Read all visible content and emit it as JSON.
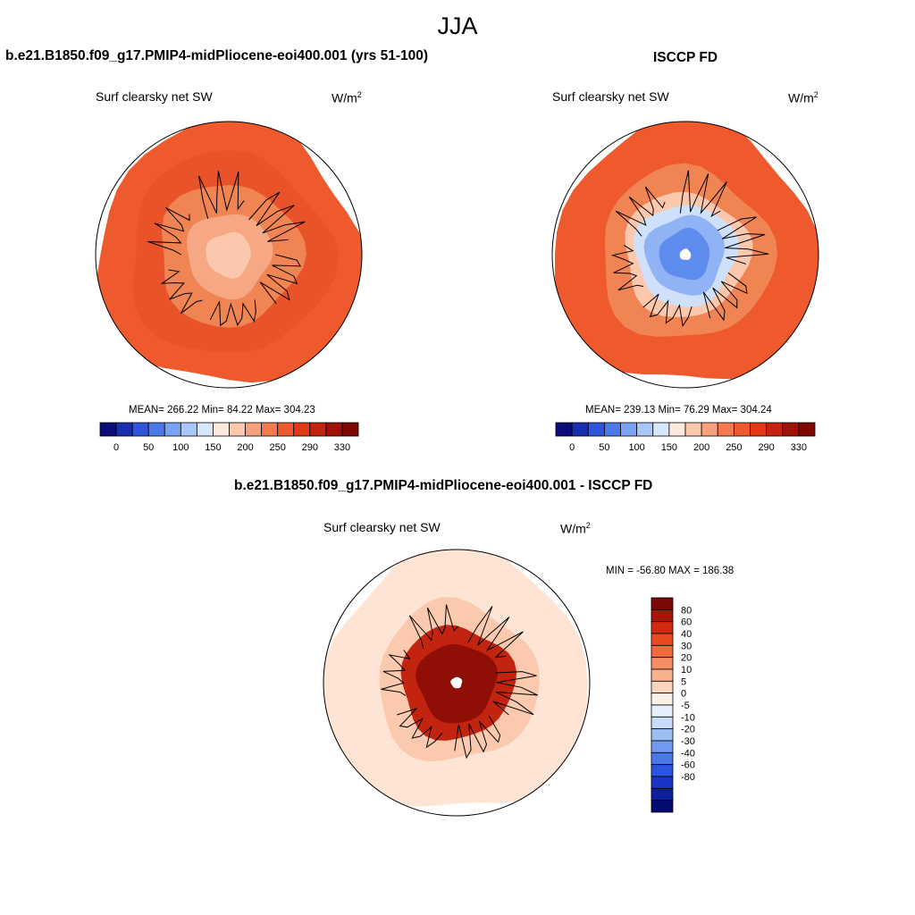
{
  "header": {
    "season": "JJA"
  },
  "panels": {
    "model": {
      "title": "b.e21.B1850.f09_g17.PMIP4-midPliocene-eoi400.001 (yrs 51-100)",
      "variable": "Surf clearsky net SW",
      "units_base": "W/m",
      "units_exp": "2",
      "stats": "MEAN= 266.22  Min=  84.22  Max= 304.23"
    },
    "obs": {
      "title": "ISCCP FD",
      "variable": "Surf clearsky net SW",
      "units_base": "W/m",
      "units_exp": "2",
      "stats": "MEAN= 239.13  Min=  76.29  Max= 304.24"
    },
    "diff": {
      "title": "b.e21.B1850.f09_g17.PMIP4-midPliocene-eoi400.001 - ISCCP FD",
      "variable": "Surf clearsky net SW",
      "units_base": "W/m",
      "units_exp": "2",
      "stats": "MIN = -56.80 MAX = 186.38"
    }
  },
  "chart_data": [
    {
      "type": "heatmap",
      "projection": "north polar stereographic",
      "title": "b.e21.B1850.f09_g17.PMIP4-midPliocene-eoi400.001 (yrs 51-100)",
      "variable": "Surf clearsky net SW",
      "units": "W/m2",
      "mean": 266.22,
      "min": 84.22,
      "max": 304.23,
      "colorbar": {
        "tick_labels": [
          "0",
          "50",
          "100",
          "150",
          "200",
          "250",
          "290",
          "330"
        ],
        "colors": [
          "#0a0d7a",
          "#1a2fb0",
          "#2e55dc",
          "#4a7ae8",
          "#7aa2f2",
          "#a8c6f8",
          "#d6e6fb",
          "#fde8dc",
          "#fbc7ad",
          "#f89f7b",
          "#f47a50",
          "#ee5a2e",
          "#e03a17",
          "#c22410",
          "#a01208",
          "#7c0904"
        ]
      },
      "rings": [
        {
          "lat": 45,
          "color": "#ee5a2e"
        },
        {
          "lat": 55,
          "color": "#e8532a"
        },
        {
          "lat": 65,
          "color": "#f08553"
        },
        {
          "lat": 75,
          "color": "#f6a884"
        },
        {
          "lat": 82,
          "color": "#fbc7ad"
        }
      ]
    },
    {
      "type": "heatmap",
      "projection": "north polar stereographic",
      "title": "ISCCP FD",
      "variable": "Surf clearsky net SW",
      "units": "W/m2",
      "mean": 239.13,
      "min": 76.29,
      "max": 304.24,
      "colorbar": {
        "tick_labels": [
          "0",
          "50",
          "100",
          "150",
          "200",
          "250",
          "290",
          "330"
        ],
        "colors": [
          "#0a0d7a",
          "#1a2fb0",
          "#2e55dc",
          "#4a7ae8",
          "#7aa2f2",
          "#a8c6f8",
          "#d6e6fb",
          "#fde8dc",
          "#fbc7ad",
          "#f89f7b",
          "#f47a50",
          "#ee5a2e",
          "#e03a17",
          "#c22410",
          "#a01208",
          "#7c0904"
        ]
      },
      "rings": [
        {
          "lat": 45,
          "color": "#ee5a2e"
        },
        {
          "lat": 60,
          "color": "#f08553"
        },
        {
          "lat": 68,
          "color": "#fbc7ad"
        },
        {
          "lat": 72,
          "color": "#cfe0fb"
        },
        {
          "lat": 76,
          "color": "#8fb3f4"
        },
        {
          "lat": 81,
          "color": "#5d8cee"
        },
        {
          "lat": 88,
          "color": "#ffffff"
        }
      ]
    },
    {
      "type": "heatmap",
      "projection": "north polar stereographic",
      "title": "b.e21.B1850.f09_g17.PMIP4-midPliocene-eoi400.001 - ISCCP FD",
      "variable": "Surf clearsky net SW",
      "units": "W/m2",
      "min": -56.8,
      "max": 186.38,
      "colorbar": {
        "orientation": "vertical",
        "tick_labels": [
          "80",
          "60",
          "40",
          "30",
          "20",
          "10",
          "5",
          "0",
          "-5",
          "-10",
          "-20",
          "-30",
          "-40",
          "-60",
          "-80"
        ],
        "colors": [
          "#7c0904",
          "#a81408",
          "#d02a10",
          "#e84a22",
          "#f06a3c",
          "#f58e62",
          "#f9b08c",
          "#fcd4bc",
          "#fdf0e6",
          "#e6effc",
          "#c8dcf9",
          "#9cbef4",
          "#7099ef",
          "#4a78ea",
          "#2a55e0",
          "#1a35c4",
          "#0e1e9c",
          "#060a70"
        ]
      },
      "rings": [
        {
          "lat": 45,
          "color": "#fde4d4"
        },
        {
          "lat": 62,
          "color": "#fbc9ae"
        },
        {
          "lat": 70,
          "color": "#c22410"
        },
        {
          "lat": 76,
          "color": "#8f0e05"
        },
        {
          "lat": 88,
          "color": "#ffffff"
        }
      ]
    }
  ]
}
